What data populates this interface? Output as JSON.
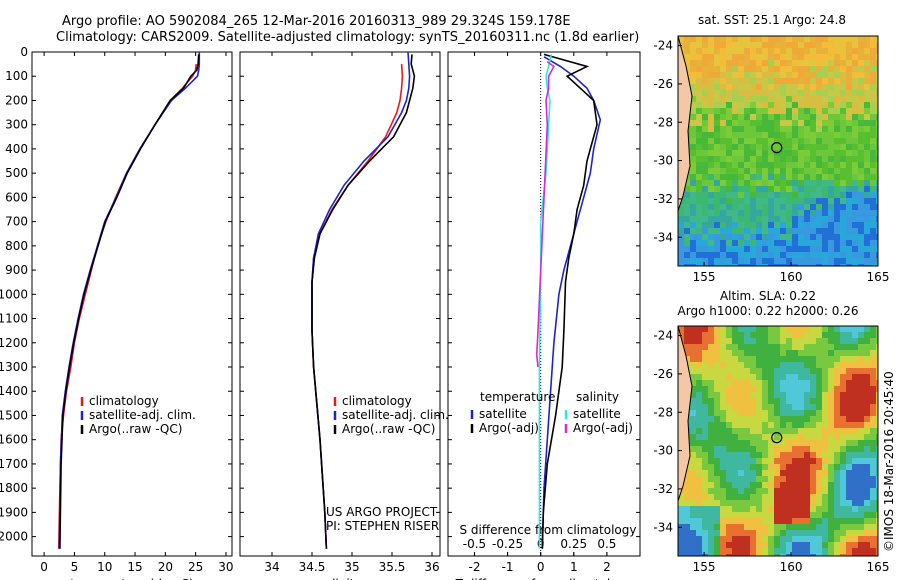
{
  "header": {
    "line1": "Argo profile: AO 5902084_265 12-Mar-2016 20160313_989 29.324S 159.178E",
    "line2": "Climatology: CARS2009. Satellite-adjusted climatology: synTS_20160311.nc (1.8d earlier)"
  },
  "colors": {
    "climatology": "#e41a1c",
    "satellite": "#1f24c8",
    "argo": "#000000",
    "salinity_satellite": "#2ee8e8",
    "salinity_argo": "#d62ad6"
  },
  "chart_data": [
    {
      "type": "line",
      "id": "temperature",
      "xlabel": "temperature (deg C)",
      "ylabel": "",
      "xlim": [
        -2,
        31
      ],
      "ylim": [
        2080,
        0
      ],
      "xticks": [
        0,
        5,
        10,
        15,
        20,
        25,
        30
      ],
      "yticks": [
        0,
        100,
        200,
        300,
        400,
        500,
        600,
        700,
        800,
        900,
        1000,
        1100,
        1200,
        1300,
        1400,
        1500,
        1600,
        1700,
        1800,
        1900,
        2000
      ],
      "legend": {
        "position": "lower-middle",
        "entries": [
          "climatology",
          "satellite-adj. clim.",
          "Argo(..raw -QC)"
        ]
      },
      "series": [
        {
          "name": "climatology",
          "x": [
            25.1,
            25.0,
            24.5,
            22.8,
            20.8,
            18.3,
            15.8,
            13.6,
            11.8,
            10.2,
            8.8,
            7.8,
            6.8,
            5.8,
            5.0,
            4.4,
            3.7,
            3.2,
            2.8,
            2.6,
            2.4
          ],
          "y": [
            50,
            75,
            100,
            150,
            200,
            300,
            400,
            500,
            600,
            700,
            800,
            900,
            1000,
            1100,
            1200,
            1300,
            1400,
            1500,
            1600,
            1800,
            2050
          ]
        },
        {
          "name": "satellite-adj. clim.",
          "x": [
            25.6,
            25.6,
            25.5,
            25.3,
            23.3,
            21.0,
            18.3,
            15.8,
            13.6,
            11.9,
            10.0,
            8.8,
            7.6,
            6.5,
            5.6,
            4.8,
            4.1,
            3.5,
            3.0,
            2.7,
            2.5
          ],
          "y": [
            0,
            50,
            75,
            100,
            150,
            200,
            300,
            400,
            500,
            600,
            700,
            800,
            900,
            1000,
            1100,
            1200,
            1300,
            1400,
            1500,
            1700,
            2050
          ]
        },
        {
          "name": "Argo(..raw -QC)",
          "x": [
            25.5,
            25.4,
            25.2,
            24.2,
            23.0,
            20.8,
            18.3,
            15.9,
            13.7,
            12.0,
            10.1,
            8.9,
            7.7,
            6.6,
            5.7,
            4.9,
            4.2,
            3.6,
            3.1,
            2.8,
            2.6
          ],
          "y": [
            10,
            50,
            75,
            100,
            150,
            200,
            300,
            400,
            500,
            600,
            700,
            800,
            900,
            1000,
            1100,
            1200,
            1300,
            1400,
            1500,
            1700,
            2050
          ]
        }
      ]
    },
    {
      "type": "line",
      "id": "salinity",
      "xlabel": "salinity",
      "ylabel": "",
      "xlim": [
        33.6,
        36.1
      ],
      "ylim": [
        2080,
        0
      ],
      "xticks": [
        34,
        34.5,
        35,
        35.5,
        36
      ],
      "xtick_labels": [
        "34",
        "34.5",
        "35",
        "35.5",
        "36"
      ],
      "legend": {
        "position": "lower-right",
        "entries": [
          "climatology",
          "satellite-adj. clim.",
          "Argo(..raw -QC)"
        ]
      },
      "annotation": [
        "US ARGO PROJECT",
        "PI: STEPHEN RISER"
      ],
      "series": [
        {
          "name": "climatology",
          "x": [
            35.62,
            35.63,
            35.62,
            35.6,
            35.56,
            35.42,
            35.2,
            34.95,
            34.75,
            34.6,
            34.52,
            34.5,
            34.5,
            34.5,
            34.52,
            34.56,
            34.6,
            34.63,
            34.66,
            34.68
          ],
          "y": [
            50,
            100,
            150,
            200,
            250,
            350,
            450,
            550,
            650,
            750,
            850,
            950,
            1050,
            1150,
            1300,
            1450,
            1600,
            1750,
            1900,
            2050
          ]
        },
        {
          "name": "satellite-adj. clim.",
          "x": [
            35.7,
            35.71,
            35.72,
            35.71,
            35.68,
            35.62,
            35.45,
            35.15,
            34.9,
            34.72,
            34.58,
            34.52,
            34.5,
            34.5,
            34.5,
            34.52,
            34.56,
            34.6,
            34.63,
            34.66,
            34.68
          ],
          "y": [
            0,
            50,
            100,
            150,
            200,
            250,
            350,
            450,
            550,
            650,
            750,
            850,
            950,
            1050,
            1150,
            1300,
            1450,
            1600,
            1750,
            1900,
            2050
          ]
        },
        {
          "name": "Argo(..raw -QC)",
          "x": [
            35.75,
            35.74,
            35.78,
            35.76,
            35.72,
            35.68,
            35.52,
            35.22,
            34.95,
            34.76,
            34.6,
            34.53,
            34.5,
            34.5,
            34.5,
            34.52,
            34.56,
            34.6,
            34.63,
            34.66,
            34.68
          ],
          "y": [
            10,
            50,
            100,
            150,
            200,
            250,
            350,
            450,
            550,
            650,
            750,
            850,
            950,
            1050,
            1150,
            1300,
            1450,
            1600,
            1750,
            1900,
            2050
          ]
        }
      ]
    },
    {
      "type": "line",
      "id": "difference",
      "xlabel": "T difference from climatology",
      "top_axis_label": "S difference from climatology",
      "xlim": [
        -2.8,
        3
      ],
      "ylim": [
        2080,
        0
      ],
      "xticks": [
        -2,
        -1,
        0,
        1,
        2
      ],
      "top_xticks": [
        -0.5,
        -0.25,
        0,
        0.25,
        0.5
      ],
      "top_xtick_labels": [
        "-0.5",
        "-0.25",
        "0",
        "0.25",
        "0.5"
      ],
      "legend": {
        "position": "lower",
        "groups": [
          {
            "title": "temperature",
            "entries": [
              "satellite",
              "Argo(-adj)"
            ]
          },
          {
            "title": "salinity",
            "entries": [
              "satellite",
              "Argo(-adj)"
            ]
          }
        ]
      },
      "series": [
        {
          "name": "temperature satellite",
          "x": [
            0.1,
            0.6,
            1.0,
            1.4,
            1.6,
            1.8,
            1.6,
            1.5,
            1.3,
            1.1,
            0.9,
            0.7,
            0.55,
            0.4,
            0.3,
            0.2,
            0.1,
            0.05
          ],
          "y": [
            20,
            60,
            100,
            150,
            200,
            280,
            400,
            500,
            600,
            700,
            800,
            900,
            1000,
            1200,
            1400,
            1600,
            1800,
            2050
          ]
        },
        {
          "name": "temperature Argo(-adj)",
          "x": [
            0.1,
            1.4,
            0.8,
            1.2,
            1.6,
            1.7,
            1.4,
            1.3,
            1.1,
            1.0,
            0.85,
            0.75,
            0.7,
            0.65,
            0.45,
            0.2,
            0.08,
            0.05
          ],
          "y": [
            10,
            60,
            100,
            150,
            200,
            300,
            450,
            550,
            650,
            750,
            850,
            950,
            1150,
            1300,
            1500,
            1700,
            1900,
            2050
          ]
        },
        {
          "name": "salinity satellite",
          "x": [
            0.08,
            0.06,
            0.04,
            0.05,
            0.07,
            0.06,
            0.04,
            0.02,
            0.0,
            0.0,
            -0.005,
            -0.01,
            -0.01,
            -0.01,
            -0.01
          ],
          "y": [
            10,
            60,
            100,
            150,
            200,
            300,
            500,
            600,
            700,
            900,
            1100,
            1300,
            1500,
            1800,
            2050
          ]
        },
        {
          "name": "salinity Argo(-adj)",
          "x": [
            0.05,
            0.1,
            0.06,
            0.06,
            0.04,
            0.05,
            -0.02,
            -0.03,
            -0.02
          ],
          "y": [
            40,
            60,
            100,
            150,
            200,
            300,
            1150,
            1250,
            1300
          ]
        }
      ]
    },
    {
      "type": "heatmap",
      "id": "sst-map",
      "title": "sat. SST: 25.1  Argo: 24.8",
      "xlim": [
        153.5,
        165
      ],
      "ylim": [
        -35.5,
        -23.5
      ],
      "xticks": [
        155,
        160,
        165
      ],
      "yticks": [
        -24,
        -26,
        -28,
        -30,
        -32,
        -34
      ],
      "marker": {
        "lon": 159.178,
        "lat": -29.324
      }
    },
    {
      "type": "heatmap",
      "id": "sla-map",
      "title": "Altim. SLA: 0.22",
      "subtitle": "Argo h1000: 0.22 h2000: 0.26",
      "xlim": [
        153.5,
        165
      ],
      "ylim": [
        -35.5,
        -23.5
      ],
      "xticks": [
        155,
        160,
        165
      ],
      "yticks": [
        -24,
        -26,
        -28,
        -30,
        -32,
        -34
      ],
      "marker": {
        "lon": 159.178,
        "lat": -29.324
      }
    }
  ],
  "footer": {
    "credit": "©IMOS 18-Mar-2016 20:45:40"
  }
}
